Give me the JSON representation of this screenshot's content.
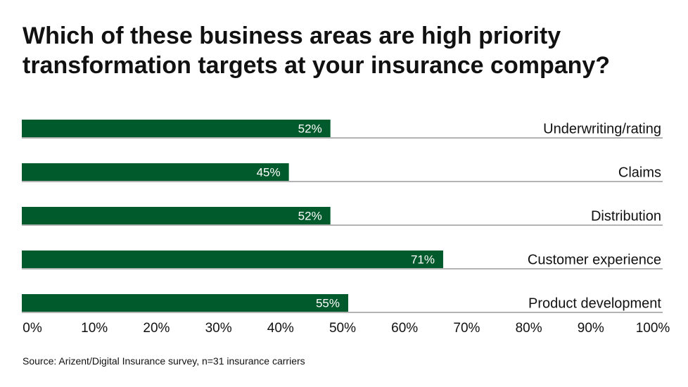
{
  "title": "Which of these business areas are high priority transformation targets at your insurance company?",
  "source": "Source: Arizent/Digital Insurance survey, n=31 insurance carriers",
  "colors": {
    "bar": "#005a2b",
    "bar_label": "#ffffff",
    "text": "#111111",
    "baseline": "#9a9a9a"
  },
  "chart_data": {
    "type": "bar",
    "orientation": "horizontal",
    "categories": [
      "Underwriting/rating",
      "Claims",
      "Distribution",
      "Customer experience",
      "Product development"
    ],
    "values": [
      52,
      45,
      52,
      71,
      55
    ],
    "value_labels": [
      "52%",
      "45%",
      "52%",
      "71%",
      "55%"
    ],
    "xlim": [
      0,
      100
    ],
    "x_ticks": [
      "0%",
      "10%",
      "20%",
      "30%",
      "40%",
      "50%",
      "60%",
      "70%",
      "80%",
      "90%",
      "100%"
    ],
    "grid": false,
    "legend": "none"
  }
}
